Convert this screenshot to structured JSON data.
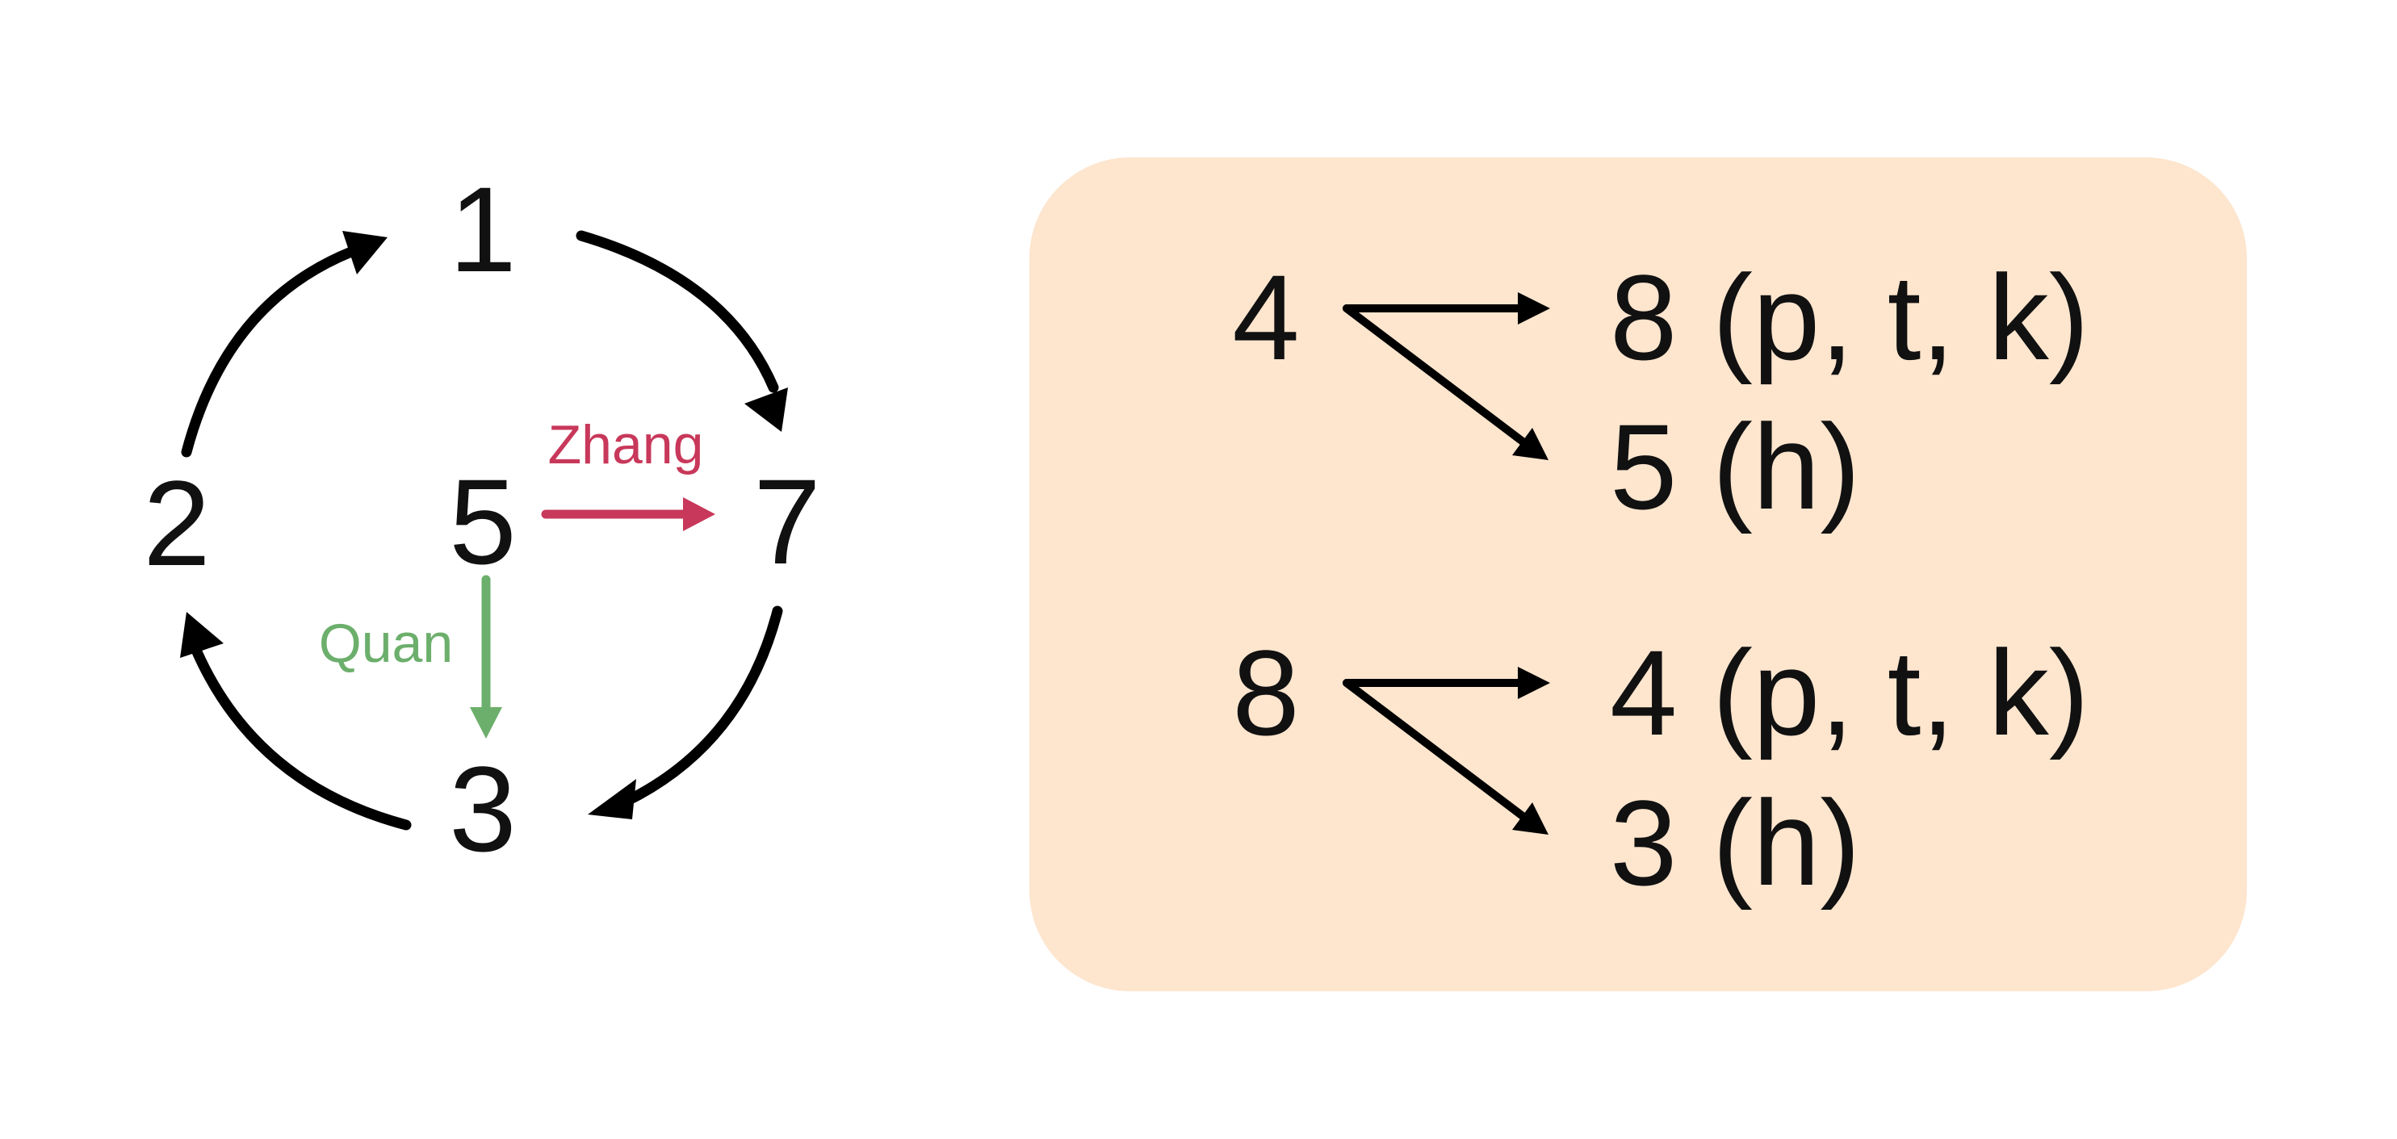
{
  "cycle": {
    "nodes": {
      "top": "1",
      "right": "7",
      "bottom": "3",
      "left": "2",
      "center": "5"
    },
    "cycle_arrow_color": "#000000",
    "zhang": {
      "label": "Zhang",
      "color": "#C8385A"
    },
    "quan": {
      "label": "Quan",
      "color": "#6CAF6C"
    }
  },
  "rules_panel": {
    "background": "#FDE5CE",
    "rules": [
      {
        "source": "4",
        "targets": [
          {
            "tone": "8",
            "condition": "(p, t, k)"
          },
          {
            "tone": "5",
            "condition": "(h)"
          }
        ]
      },
      {
        "source": "8",
        "targets": [
          {
            "tone": "4",
            "condition": "(p, t, k)"
          },
          {
            "tone": "3",
            "condition": "(h)"
          }
        ]
      }
    ]
  }
}
